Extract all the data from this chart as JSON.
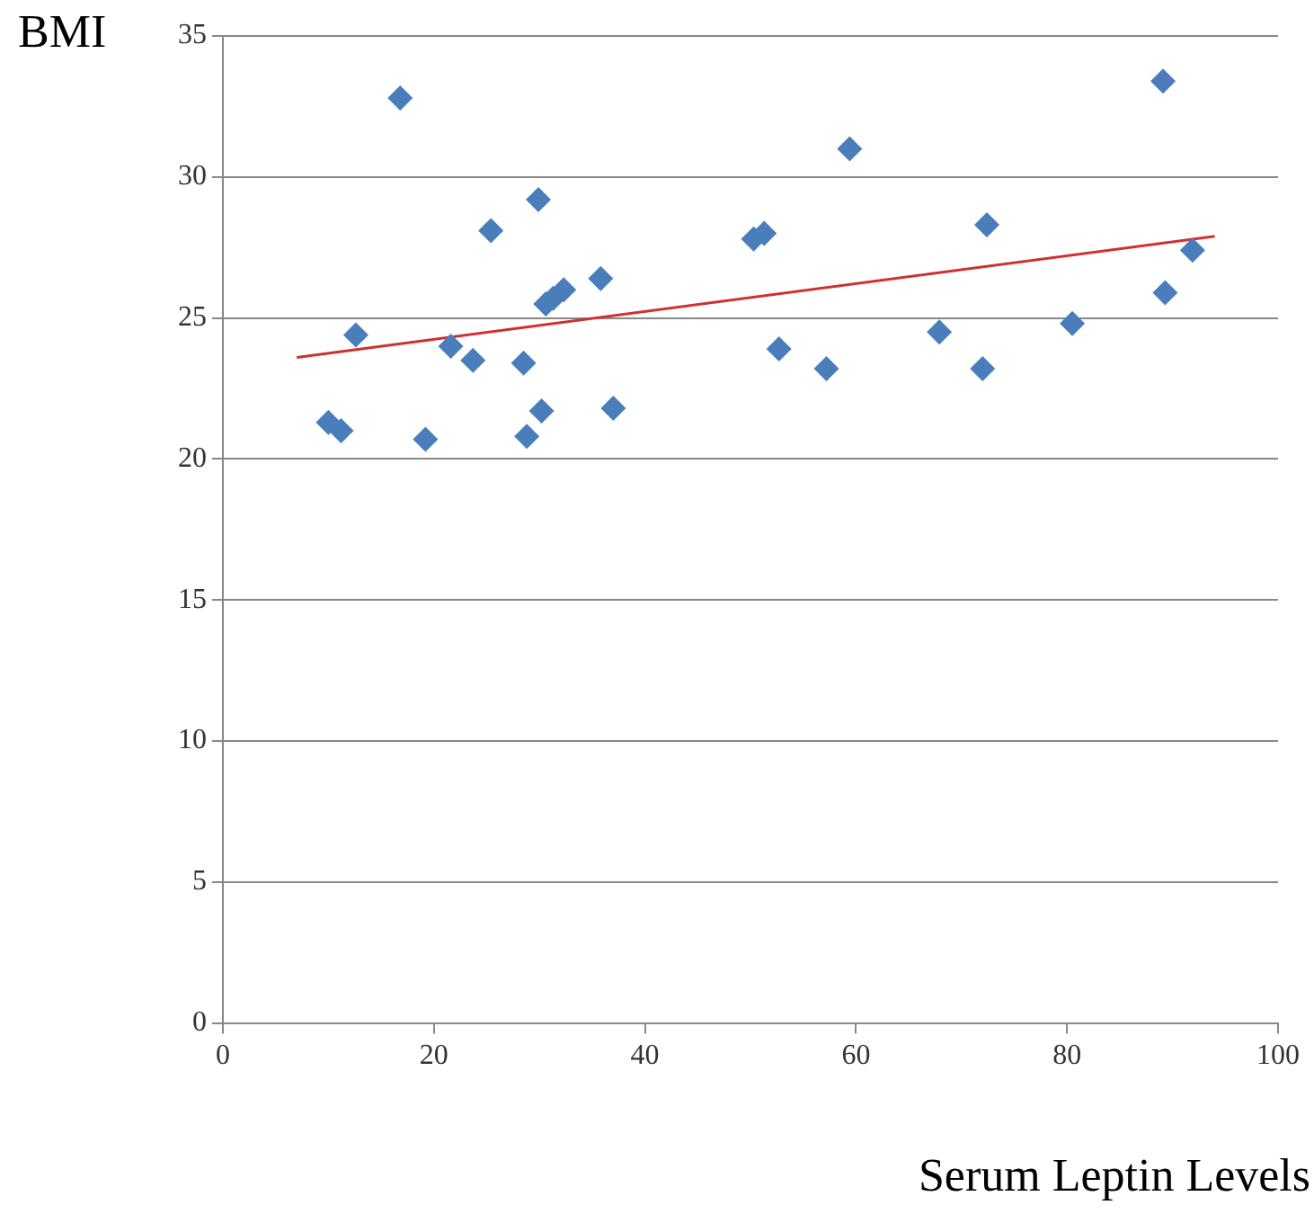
{
  "chart_data": {
    "type": "scatter",
    "xlabel": "Serum Leptin Levels",
    "ylabel": "BMI",
    "xlim": [
      0,
      100
    ],
    "xticks": [
      0,
      20,
      40,
      60,
      80,
      100
    ],
    "ylim": [
      0,
      35
    ],
    "yticks": [
      0,
      5,
      10,
      15,
      20,
      25,
      30,
      35
    ],
    "grid": "y",
    "legend": false,
    "marker": "diamond",
    "series": [
      {
        "color": "#4a7ebb",
        "x": [
          10.0,
          11.2,
          12.6,
          16.8,
          19.2,
          21.6,
          23.7,
          25.4,
          28.5,
          28.8,
          29.9,
          30.2,
          30.6,
          31.3,
          32.3,
          35.8,
          37.0,
          50.3,
          51.3,
          52.7,
          57.2,
          59.4,
          67.9,
          72.0,
          72.4,
          80.5,
          89.1,
          89.3,
          91.9
        ],
        "values": [
          21.3,
          21.0,
          24.4,
          32.8,
          20.7,
          24.0,
          23.5,
          28.1,
          23.4,
          20.8,
          29.2,
          21.7,
          25.5,
          25.7,
          26.0,
          26.4,
          21.8,
          27.8,
          28.0,
          23.9,
          23.2,
          31.0,
          24.5,
          23.2,
          28.3,
          24.8,
          33.4,
          25.9,
          27.4
        ]
      },
      {
        "type": "line",
        "color": "#d03030",
        "marker": "none",
        "x": [
          7,
          94
        ],
        "values": [
          23.6,
          27.9
        ]
      }
    ]
  }
}
